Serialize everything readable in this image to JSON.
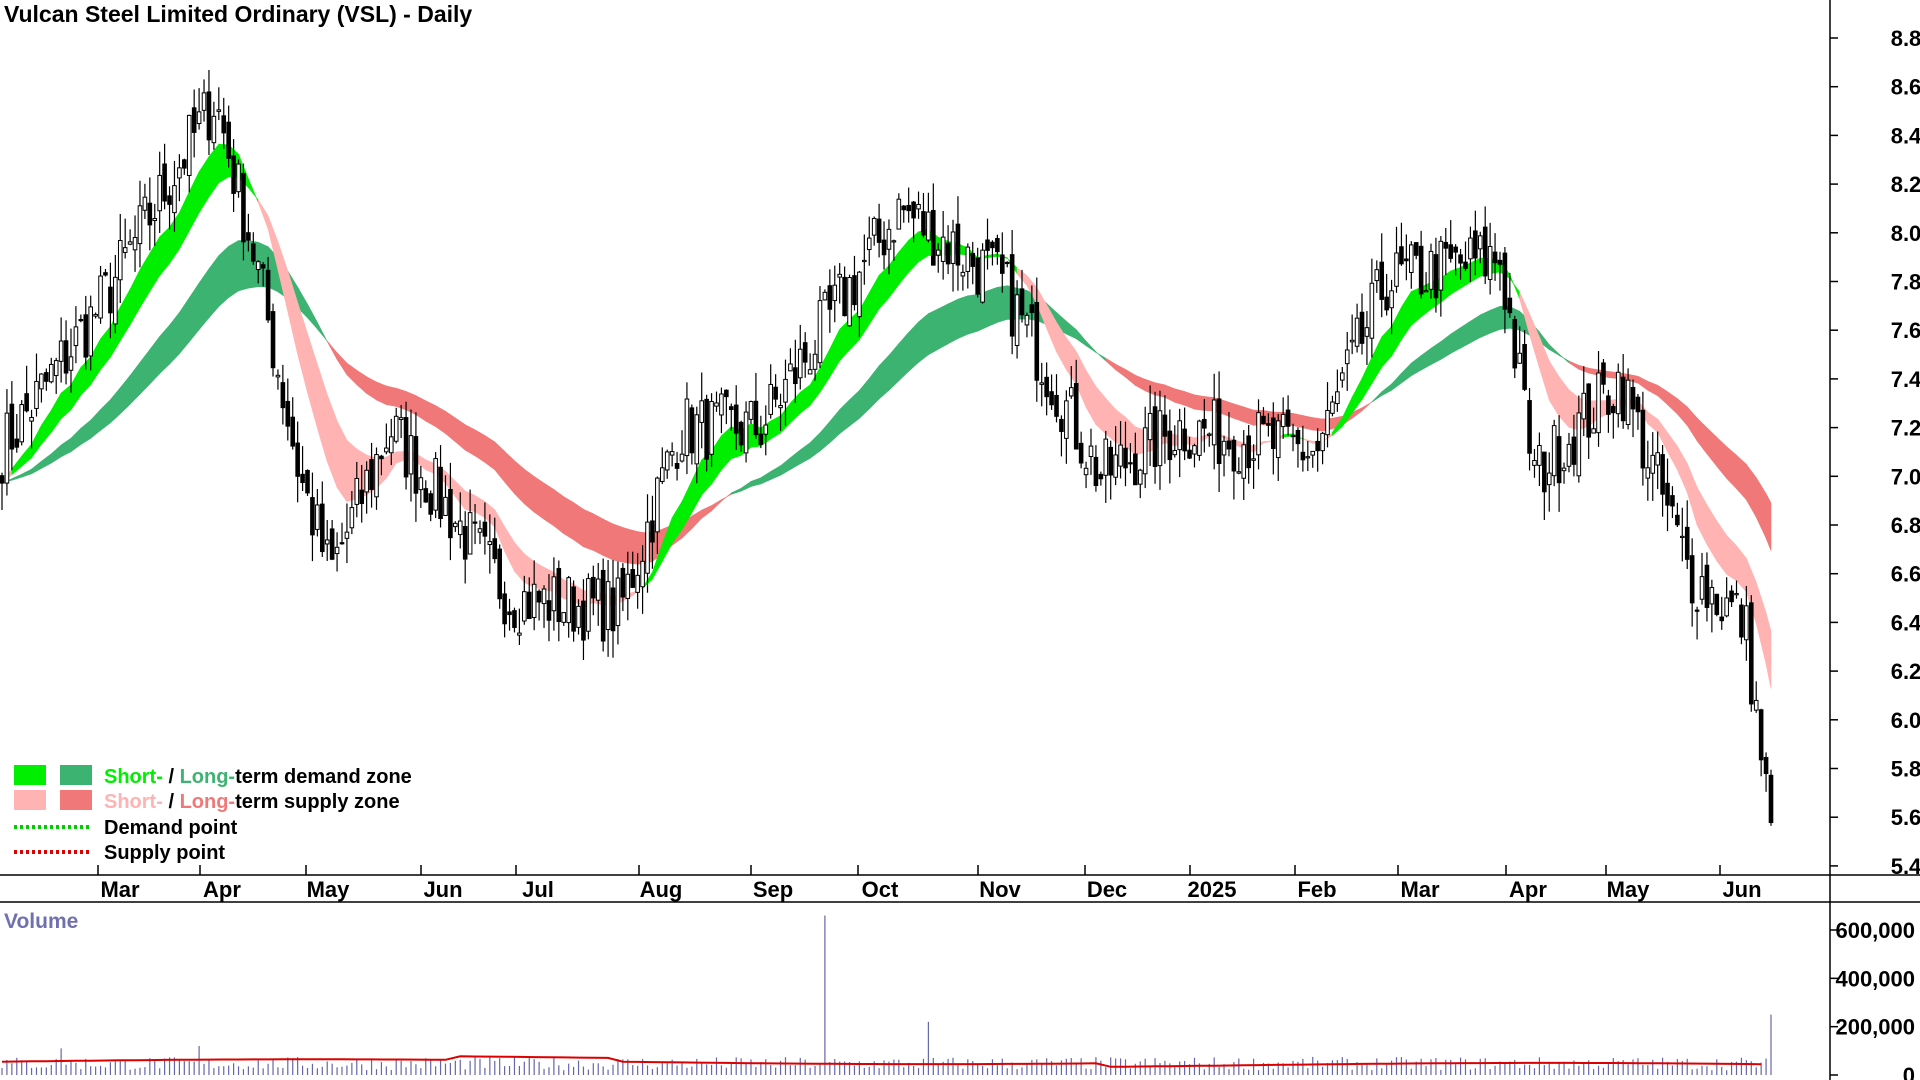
{
  "chart_data": {
    "type": "candlestick",
    "title": "Vulcan Steel Limited Ordinary (VSL) - Daily",
    "price_axis": {
      "ticks": [
        "8.8",
        "8.6",
        "8.4",
        "8.2",
        "8.0",
        "7.8",
        "7.6",
        "7.4",
        "7.2",
        "7.0",
        "6.8",
        "6.6",
        "6.4",
        "6.2",
        "6.0",
        "5.8",
        "5.6",
        "5.4"
      ],
      "ylim": [
        5.3,
        9.05
      ]
    },
    "x_axis": {
      "labels": [
        "Mar",
        "Apr",
        "May",
        "Jun",
        "Jul",
        "Aug",
        "Sep",
        "Oct",
        "Nov",
        "Dec",
        "2025",
        "Feb",
        "Mar",
        "Apr",
        "May",
        "Jun"
      ]
    },
    "volume_panel": {
      "label": "Volume",
      "ticks": [
        "600,000",
        "400,000",
        "200,000",
        "0"
      ],
      "ylim": [
        0,
        680000
      ],
      "spikes": [
        {
          "month": "Mar",
          "value": 110000
        },
        {
          "month": "Apr",
          "value": 120000
        },
        {
          "month": "Sep",
          "value": 660000
        },
        {
          "month": "Oct",
          "value": 220000
        },
        {
          "month": "Jun",
          "value": 250000
        }
      ],
      "average_line_color": "#dd0000",
      "bar_color": "#6666aa"
    },
    "price_keypoints": [
      {
        "month": "Feb",
        "close": 7.1
      },
      {
        "month": "Mar",
        "close": 7.7
      },
      {
        "month": "Apr",
        "close": 8.55
      },
      {
        "month": "Apr",
        "close": 7.9
      },
      {
        "month": "May",
        "close": 7.0
      },
      {
        "month": "May",
        "close": 6.6
      },
      {
        "month": "Jun",
        "close": 7.2
      },
      {
        "month": "Jul",
        "close": 6.5
      },
      {
        "month": "Aug",
        "close": 6.45
      },
      {
        "month": "Aug",
        "close": 7.2
      },
      {
        "month": "Sep",
        "close": 7.2
      },
      {
        "month": "Oct",
        "close": 8.1
      },
      {
        "month": "Nov",
        "close": 7.8
      },
      {
        "month": "Nov",
        "close": 7.5
      },
      {
        "month": "Dec",
        "close": 7.0
      },
      {
        "month": "2025",
        "close": 7.2
      },
      {
        "month": "Feb",
        "close": 7.1
      },
      {
        "month": "Mar",
        "close": 7.8
      },
      {
        "month": "Apr",
        "close": 7.9
      },
      {
        "month": "Apr",
        "close": 7.0
      },
      {
        "month": "May",
        "close": 7.4
      },
      {
        "month": "Jun",
        "close": 6.6
      },
      {
        "month": "Jun",
        "close": 6.4
      },
      {
        "month": "Jun",
        "close": 5.5
      }
    ],
    "zones": {
      "short_demand_color": "#00ee00",
      "long_demand_color": "#3cb371",
      "short_supply_color": "#ffb3b3",
      "long_supply_color": "#f07878",
      "neutral_color": "#ff7733"
    },
    "legend": [
      {
        "prefix": "Short-",
        "sep": " / ",
        "mid": "Long-",
        "suffix": "term demand zone",
        "colors": [
          "#00ee00",
          "#3cb371"
        ],
        "type": "box"
      },
      {
        "prefix": "Short-",
        "sep": " / ",
        "mid": "Long-",
        "suffix": "term supply zone",
        "colors": [
          "#ffb3b3",
          "#f07878"
        ],
        "type": "box"
      },
      {
        "text": "Demand point",
        "color": "#00cc00",
        "type": "dots"
      },
      {
        "text": "Supply point",
        "color": "#dd0000",
        "type": "dots"
      }
    ]
  }
}
